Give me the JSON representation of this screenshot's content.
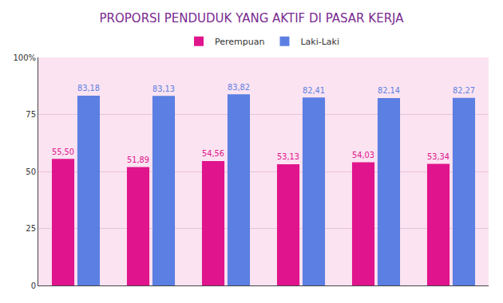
{
  "chart_data": {
    "type": "bar",
    "title": "PROPORSI PENDUDUK YANG AKTIF DI PASAR KERJA",
    "categories": [
      null,
      null,
      null,
      null,
      null,
      null
    ],
    "series": [
      {
        "name": "Perempuan",
        "color": "#e0148c",
        "values": [
          55.5,
          51.89,
          54.56,
          53.13,
          54.03,
          53.34
        ],
        "value_labels": [
          "55,50",
          "51,89",
          "54,56",
          "53,13",
          "54,03",
          "53,34"
        ]
      },
      {
        "name": "Laki-Laki",
        "color": "#5b7fe2",
        "values": [
          83.18,
          83.13,
          83.82,
          82.41,
          82.14,
          82.27
        ],
        "value_labels": [
          "83,18",
          "83,13",
          "83,82",
          "82,41",
          "82,14",
          "82,27"
        ]
      }
    ],
    "ylim": [
      0,
      100
    ],
    "yticks": [
      0,
      25,
      50,
      75,
      {
        "value": 100,
        "label": "100%"
      }
    ],
    "grid": true,
    "legend": "top",
    "data_labels": true,
    "tick_labels": "y"
  }
}
